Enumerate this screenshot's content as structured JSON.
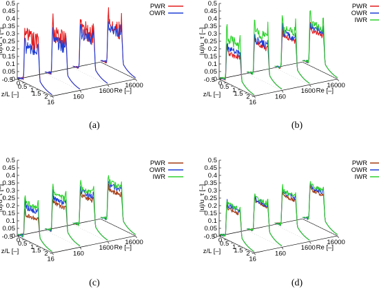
{
  "chart_data": [
    {
      "type": "line",
      "panel_label": "(a)",
      "ylabel": "|u|/u_τ [–]",
      "ylim": [
        0,
        0.5
      ],
      "yticks": [
        "0",
        "0.05",
        "0.1",
        "0.15",
        "0.2",
        "0.25",
        "0.3",
        "0.35",
        "0.4",
        "0.45",
        "0.5"
      ],
      "zlabel": "z/L [–]",
      "zticks": [
        "-0.5",
        "0",
        "0.5",
        "1",
        "1.5",
        "2"
      ],
      "xlabel": "Re [–]",
      "xticks": [
        "16",
        "160",
        "1600",
        "16000"
      ],
      "legend_position": "top-right",
      "series": [
        {
          "name": "PWR",
          "color": "#e31a1c",
          "plateau": [
            0.3,
            0.28,
            0.28,
            0.26
          ],
          "noise": 0.07,
          "edge": 0.12
        },
        {
          "name": "OWR",
          "color": "#1f3fd6",
          "plateau": [
            0.24,
            0.24,
            0.25,
            0.24
          ],
          "noise": 0.045,
          "edge": 0.1
        }
      ]
    },
    {
      "type": "line",
      "panel_label": "(b)",
      "ylabel": "|u|/u_τ [–]",
      "ylim": [
        0,
        0.5
      ],
      "yticks": [
        "0",
        "0.05",
        "0.1",
        "0.15",
        "0.2",
        "0.25",
        "0.3",
        "0.35",
        "0.4",
        "0.45",
        "0.5"
      ],
      "zlabel": "z/L [–]",
      "zticks": [
        "-0.5",
        "0",
        "0.5",
        "1",
        "1.5",
        "2"
      ],
      "xlabel": "Re [–]",
      "xticks": [
        "16",
        "160",
        "1600",
        "16000"
      ],
      "legend_position": "top-right",
      "series": [
        {
          "name": "PWR",
          "color": "#e31a1c",
          "plateau": [
            0.2,
            0.23,
            0.24,
            0.24
          ],
          "noise": 0.02,
          "edge": 0.05
        },
        {
          "name": "OWR",
          "color": "#1f3fd6",
          "plateau": [
            0.23,
            0.25,
            0.26,
            0.26
          ],
          "noise": 0.025,
          "edge": 0.06
        },
        {
          "name": "IWR",
          "color": "#2ed12e",
          "plateau": [
            0.29,
            0.3,
            0.29,
            0.28
          ],
          "noise": 0.035,
          "edge": 0.14
        }
      ]
    },
    {
      "type": "line",
      "panel_label": "(c)",
      "ylabel": "|u|/u_τ [–]",
      "ylim": [
        0,
        0.5
      ],
      "yticks": [
        "0",
        "0.05",
        "0.1",
        "0.15",
        "0.2",
        "0.25",
        "0.3",
        "0.35",
        "0.4",
        "0.45",
        "0.5"
      ],
      "zlabel": "z/L [–]",
      "zticks": [
        "-0.5",
        "0",
        "0.5",
        "1",
        "1.5",
        "2"
      ],
      "xlabel": "Re [–]",
      "xticks": [
        "16",
        "160",
        "1600",
        "16000"
      ],
      "legend_position": "top-right",
      "series": [
        {
          "name": "PWR",
          "color": "#a33a12",
          "plateau": [
            0.17,
            0.21,
            0.22,
            0.22
          ],
          "noise": 0.015,
          "edge": 0.04
        },
        {
          "name": "OWR",
          "color": "#1f3fd6",
          "plateau": [
            0.22,
            0.24,
            0.25,
            0.25
          ],
          "noise": 0.02,
          "edge": 0.05
        },
        {
          "name": "IWR",
          "color": "#2ed12e",
          "plateau": [
            0.25,
            0.27,
            0.27,
            0.27
          ],
          "noise": 0.02,
          "edge": 0.07
        }
      ]
    },
    {
      "type": "line",
      "panel_label": "(d)",
      "ylabel": "|u|/u_τ [–]",
      "ylim": [
        0,
        0.5
      ],
      "yticks": [
        "0",
        "0.05",
        "0.1",
        "0.15",
        "0.2",
        "0.25",
        "0.3",
        "0.35",
        "0.4",
        "0.45",
        "0.5"
      ],
      "zlabel": "z/L [–]",
      "zticks": [
        "-0.5",
        "0",
        "0.5",
        "1",
        "1.5",
        "2"
      ],
      "xlabel": "Re [–]",
      "xticks": [
        "16",
        "160",
        "1600",
        "16000"
      ],
      "legend_position": "top-right",
      "series": [
        {
          "name": "PWR",
          "color": "#a33a12",
          "plateau": [
            0.21,
            0.22,
            0.22,
            0.22
          ],
          "noise": 0.012,
          "edge": 0.03
        },
        {
          "name": "OWR",
          "color": "#1f3fd6",
          "plateau": [
            0.23,
            0.23,
            0.24,
            0.24
          ],
          "noise": 0.015,
          "edge": 0.04
        },
        {
          "name": "IWR",
          "color": "#2ed12e",
          "plateau": [
            0.24,
            0.24,
            0.25,
            0.25
          ],
          "noise": 0.015,
          "edge": 0.04
        }
      ]
    }
  ]
}
